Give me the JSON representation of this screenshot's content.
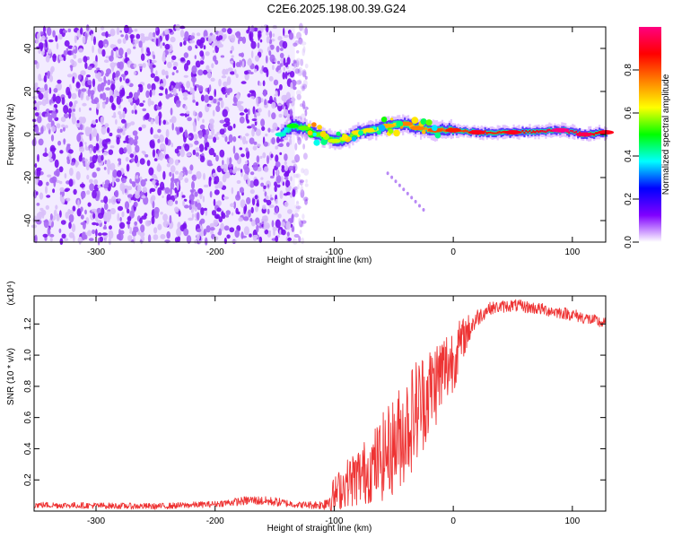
{
  "title": "C2E6.2025.198.00.39.G24",
  "chart_data": [
    {
      "type": "heatmap",
      "xlabel": "Height of straight line (km)",
      "ylabel": "Frequency (Hz)",
      "xlim": [
        -352,
        128
      ],
      "ylim": [
        -50,
        50
      ],
      "xticks": [
        -300,
        -200,
        -100,
        0,
        100
      ],
      "xtick_labels": [
        "-300",
        "-200",
        "-100",
        "0",
        "100"
      ],
      "yticks": [
        -40,
        -20,
        0,
        20,
        40
      ],
      "ytick_labels": [
        "-40",
        "-20",
        "0",
        "20",
        "40"
      ],
      "colorbar": {
        "label": "Normalized spectral amplitude",
        "range": [
          0,
          1
        ],
        "ticks": [
          0.0,
          0.2,
          0.4,
          0.6,
          0.8
        ],
        "tick_labels": [
          "0.0",
          "0.2",
          "0.4",
          "0.6",
          "0.8"
        ],
        "colors": [
          "#ffffff",
          "#8000ff",
          "#0000ff",
          "#00ffff",
          "#00ff00",
          "#ffff00",
          "#ff8000",
          "#ff0000",
          "#ff0080"
        ]
      },
      "noise_region": {
        "x": [
          -352,
          -133
        ],
        "y": [
          -50,
          50
        ],
        "amplitude": [
          0.05,
          0.25
        ]
      },
      "signal_ridge": [
        {
          "x": -145,
          "y": 0,
          "amp": 0.35
        },
        {
          "x": -135,
          "y": 4,
          "amp": 0.45
        },
        {
          "x": -125,
          "y": 3,
          "amp": 0.5
        },
        {
          "x": -115,
          "y": 0,
          "amp": 0.5
        },
        {
          "x": -100,
          "y": -3,
          "amp": 0.55
        },
        {
          "x": -90,
          "y": -2,
          "amp": 0.55
        },
        {
          "x": -80,
          "y": 1,
          "amp": 0.6
        },
        {
          "x": -70,
          "y": 2,
          "amp": 0.6
        },
        {
          "x": -55,
          "y": 4,
          "amp": 0.65
        },
        {
          "x": -40,
          "y": 5,
          "amp": 0.7
        },
        {
          "x": -30,
          "y": 3,
          "amp": 0.7
        },
        {
          "x": -15,
          "y": 2,
          "amp": 0.75
        },
        {
          "x": 0,
          "y": 2,
          "amp": 0.8
        },
        {
          "x": 20,
          "y": 1,
          "amp": 0.85
        },
        {
          "x": 50,
          "y": 1,
          "amp": 0.85
        },
        {
          "x": 90,
          "y": 2,
          "amp": 0.95
        },
        {
          "x": 110,
          "y": 0,
          "amp": 0.9
        },
        {
          "x": 128,
          "y": 1,
          "amp": 0.85
        }
      ],
      "stray_trace": {
        "x": [
          -55,
          -25
        ],
        "y": [
          -18,
          -35
        ]
      }
    },
    {
      "type": "line",
      "xlabel": "Height of straight line (km)",
      "ylabel": "SNR (10 * v/v)",
      "scale_label": "(x10⁴)",
      "xlim": [
        -352,
        128
      ],
      "ylim": [
        0,
        1.38
      ],
      "xticks": [
        -300,
        -200,
        -100,
        0,
        100
      ],
      "xtick_labels": [
        "-300",
        "-200",
        "-100",
        "0",
        "100"
      ],
      "yticks": [
        0.2,
        0.4,
        0.6,
        0.8,
        1.0,
        1.2
      ],
      "ytick_labels": [
        "0.2",
        "0.4",
        "0.6",
        "0.8",
        "1.0",
        "1.2"
      ],
      "series": [
        {
          "color": "#ee3333",
          "x": [
            -352,
            -300,
            -250,
            -200,
            -170,
            -150,
            -130,
            -110,
            -100,
            -90,
            -80,
            -70,
            -60,
            -50,
            -40,
            -30,
            -20,
            -10,
            0,
            10,
            20,
            30,
            40,
            50,
            70,
            100,
            128
          ],
          "y": [
            0.04,
            0.035,
            0.03,
            0.045,
            0.07,
            0.06,
            0.04,
            0.04,
            0.1,
            0.18,
            0.22,
            0.27,
            0.34,
            0.42,
            0.53,
            0.66,
            0.77,
            0.88,
            0.98,
            1.13,
            1.24,
            1.3,
            1.31,
            1.32,
            1.3,
            1.26,
            1.2
          ],
          "noise_amplitude": [
            0.02,
            0.02,
            0.02,
            0.02,
            0.03,
            0.03,
            0.02,
            0.03,
            0.12,
            0.15,
            0.2,
            0.22,
            0.28,
            0.32,
            0.35,
            0.35,
            0.3,
            0.28,
            0.22,
            0.12,
            0.06,
            0.04,
            0.04,
            0.04,
            0.04,
            0.04,
            0.04
          ]
        }
      ]
    }
  ]
}
